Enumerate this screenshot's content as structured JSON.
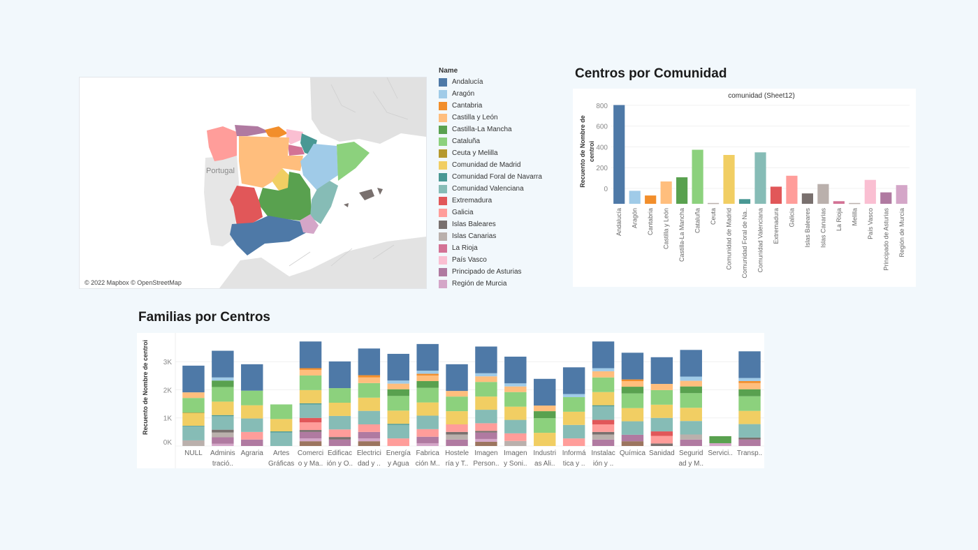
{
  "map": {
    "attribution": "© 2022 Mapbox © OpenStreetMap",
    "portugal_label": "Portugal"
  },
  "legend": {
    "title": "Name",
    "items": [
      {
        "label": "Andalucía",
        "color": "#4e79a7"
      },
      {
        "label": "Aragón",
        "color": "#a0cbe8"
      },
      {
        "label": "Cantabria",
        "color": "#f28e2b"
      },
      {
        "label": "Castilla y León",
        "color": "#ffbe7d"
      },
      {
        "label": "Castilla-La Mancha",
        "color": "#59a14f"
      },
      {
        "label": "Cataluña",
        "color": "#8cd17d"
      },
      {
        "label": "Ceuta y Melilla",
        "color": "#b6992d"
      },
      {
        "label": "Comunidad de Madrid",
        "color": "#f1ce63"
      },
      {
        "label": "Comunidad Foral de Navarra",
        "color": "#499894"
      },
      {
        "label": "Comunidad Valenciana",
        "color": "#86bcb6"
      },
      {
        "label": "Extremadura",
        "color": "#e15759"
      },
      {
        "label": "Galicia",
        "color": "#ff9d9a"
      },
      {
        "label": "Islas Baleares",
        "color": "#79706e"
      },
      {
        "label": "Islas Canarias",
        "color": "#bab0ac"
      },
      {
        "label": "La Rioja",
        "color": "#d37295"
      },
      {
        "label": "País Vasco",
        "color": "#fabfd2"
      },
      {
        "label": "Principado de Asturias",
        "color": "#b07aa1"
      },
      {
        "label": "Región de Murcia",
        "color": "#d4a6c8"
      }
    ]
  },
  "titles": {
    "centros_por_comunidad": "Centros por Comunidad",
    "familias_por_centros": "Familias por Centros"
  },
  "chart_data": [
    {
      "type": "bar",
      "title": "Centros por Comunidad",
      "subtitle": "comunidad (Sheet12)",
      "xlabel": "",
      "ylabel": "Recuento de Nombre de centro",
      "ylim": [
        0,
        960
      ],
      "yticks": [
        0,
        200,
        400,
        600,
        800
      ],
      "grid": true,
      "categories": [
        "Andalucía",
        "Aragón",
        "Cantabria",
        "Castilla y León",
        "Castilla-La Mancha",
        "Cataluña",
        "Ceuta",
        "Comunidad de Madrid",
        "Comunidad Foral de Na..",
        "Comunidad Valenciana",
        "Extremadura",
        "Galicia",
        "Islas Baleares",
        "Islas Canarias",
        "La Rioja",
        "Melilla",
        "País Vasco",
        "Principado de Asturias",
        "Región de Murcia"
      ],
      "values": [
        950,
        125,
        80,
        215,
        255,
        520,
        8,
        470,
        45,
        495,
        165,
        270,
        100,
        190,
        25,
        8,
        230,
        110,
        180
      ],
      "colors": [
        "#4e79a7",
        "#a0cbe8",
        "#f28e2b",
        "#ffbe7d",
        "#59a14f",
        "#8cd17d",
        "#bab0ac",
        "#f1ce63",
        "#499894",
        "#86bcb6",
        "#e15759",
        "#ff9d9a",
        "#79706e",
        "#bab0ac",
        "#d37295",
        "#bab0ac",
        "#fabfd2",
        "#b07aa1",
        "#d4a6c8"
      ]
    },
    {
      "type": "bar",
      "stacked": true,
      "title": "Familias por Centros",
      "xlabel": "",
      "ylabel": "Recuento de Nombre de centro",
      "ylim": [
        -100,
        3900
      ],
      "yticks": [
        0,
        1000,
        2000,
        3000
      ],
      "ytick_labels": [
        "0K",
        "1K",
        "2K",
        "3K"
      ],
      "grid": true,
      "series_order": [
        "Región de Murcia",
        "Principado de Asturias",
        "Islas Canarias",
        "Islas Baleares",
        "Galicia",
        "Extremadura",
        "Comunidad Valenciana",
        "Comunidad Foral de Navarra",
        "Comunidad de Madrid",
        "Ceuta y Melilla",
        "Cataluña",
        "Castilla-La Mancha",
        "Castilla y León",
        "Cantabria",
        "Aragón",
        "Andalucía"
      ],
      "extra_colors": {
        "Canarias/Other brown": "#9c755f"
      },
      "categories": [
        {
          "label": [
            "NULL",
            ""
          ],
          "segments": [
            [
              "#bab0ac",
              200
            ],
            [
              "#86bcb6",
              500
            ],
            [
              "#499894",
              20
            ],
            [
              "#f1ce63",
              450
            ],
            [
              "#b6992d",
              20
            ],
            [
              "#8cd17d",
              520
            ],
            [
              "#ffbe7d",
              200
            ],
            [
              "#4e79a7",
              950
            ]
          ]
        },
        {
          "label": [
            "Adminis",
            "tració.."
          ],
          "segments": [
            [
              "#d4a6c8",
              80
            ],
            [
              "#b07aa1",
              230
            ],
            [
              "#bab0ac",
              170
            ],
            [
              "#79706e",
              100
            ],
            [
              "#86bcb6",
              480
            ],
            [
              "#499894",
              40
            ],
            [
              "#f1ce63",
              480
            ],
            [
              "#8cd17d",
              520
            ],
            [
              "#59a14f",
              230
            ],
            [
              "#a0cbe8",
              110
            ],
            [
              "#4e79a7",
              950
            ]
          ]
        },
        {
          "label": [
            "Agraria",
            ""
          ],
          "segments": [
            [
              "#b07aa1",
              230
            ],
            [
              "#ff9d9a",
              270
            ],
            [
              "#86bcb6",
              480
            ],
            [
              "#f1ce63",
              470
            ],
            [
              "#8cd17d",
              520
            ],
            [
              "#4e79a7",
              940
            ]
          ]
        },
        {
          "label": [
            "Artes",
            "Gráficas"
          ],
          "segments": [
            [
              "#86bcb6",
              480
            ],
            [
              "#499894",
              40
            ],
            [
              "#f1ce63",
              440
            ],
            [
              "#8cd17d",
              520
            ]
          ]
        },
        {
          "label": [
            "Comerci",
            "o y Ma.."
          ],
          "segments": [
            [
              "#9c755f",
              170
            ],
            [
              "#d4a6c8",
              100
            ],
            [
              "#b07aa1",
              230
            ],
            [
              "#79706e",
              70
            ],
            [
              "#ff9d9a",
              270
            ],
            [
              "#e15759",
              160
            ],
            [
              "#86bcb6",
              480
            ],
            [
              "#499894",
              40
            ],
            [
              "#f1ce63",
              470
            ],
            [
              "#8cd17d",
              520
            ],
            [
              "#ffbe7d",
              200
            ],
            [
              "#f28e2b",
              60
            ],
            [
              "#4e79a7",
              950
            ]
          ]
        },
        {
          "label": [
            "Edificac",
            "ión y O.."
          ],
          "segments": [
            [
              "#b07aa1",
              230
            ],
            [
              "#79706e",
              90
            ],
            [
              "#ff9d9a",
              270
            ],
            [
              "#86bcb6",
              480
            ],
            [
              "#f1ce63",
              470
            ],
            [
              "#8cd17d",
              520
            ],
            [
              "#4e79a7",
              950
            ]
          ]
        },
        {
          "label": [
            "Electrici",
            "dad y .."
          ],
          "segments": [
            [
              "#9c755f",
              170
            ],
            [
              "#d4a6c8",
              100
            ],
            [
              "#b07aa1",
              230
            ],
            [
              "#ff9d9a",
              270
            ],
            [
              "#86bcb6",
              480
            ],
            [
              "#f1ce63",
              470
            ],
            [
              "#8cd17d",
              520
            ],
            [
              "#ffbe7d",
              200
            ],
            [
              "#f28e2b",
              80
            ],
            [
              "#4e79a7",
              950
            ]
          ]
        },
        {
          "label": [
            "Energía",
            "y Agua"
          ],
          "segments": [
            [
              "#ff9d9a",
              270
            ],
            [
              "#86bcb6",
              480
            ],
            [
              "#499894",
              40
            ],
            [
              "#f1ce63",
              470
            ],
            [
              "#8cd17d",
              520
            ],
            [
              "#59a14f",
              240
            ],
            [
              "#ffbe7d",
              200
            ],
            [
              "#a0cbe8",
              110
            ],
            [
              "#4e79a7",
              950
            ]
          ]
        },
        {
          "label": [
            "Fabrica",
            "ción M.."
          ],
          "segments": [
            [
              "#d4a6c8",
              100
            ],
            [
              "#b07aa1",
              230
            ],
            [
              "#ff9d9a",
              270
            ],
            [
              "#86bcb6",
              480
            ],
            [
              "#f1ce63",
              470
            ],
            [
              "#8cd17d",
              520
            ],
            [
              "#59a14f",
              240
            ],
            [
              "#ffbe7d",
              200
            ],
            [
              "#f28e2b",
              60
            ],
            [
              "#a0cbe8",
              110
            ],
            [
              "#4e79a7",
              950
            ]
          ]
        },
        {
          "label": [
            "Hostele",
            "ría y T.."
          ],
          "segments": [
            [
              "#b07aa1",
              230
            ],
            [
              "#bab0ac",
              180
            ],
            [
              "#79706e",
              90
            ],
            [
              "#ff9d9a",
              270
            ],
            [
              "#f1ce63",
              470
            ],
            [
              "#8cd17d",
              520
            ],
            [
              "#ffbe7d",
              200
            ],
            [
              "#4e79a7",
              950
            ]
          ]
        },
        {
          "label": [
            "Imagen",
            "Person.."
          ],
          "segments": [
            [
              "#9c755f",
              150
            ],
            [
              "#d4a6c8",
              100
            ],
            [
              "#b07aa1",
              230
            ],
            [
              "#79706e",
              60
            ],
            [
              "#ff9d9a",
              270
            ],
            [
              "#86bcb6",
              480
            ],
            [
              "#f1ce63",
              470
            ],
            [
              "#8cd17d",
              520
            ],
            [
              "#ffbe7d",
              200
            ],
            [
              "#a0cbe8",
              110
            ],
            [
              "#4e79a7",
              950
            ]
          ]
        },
        {
          "label": [
            "Imagen",
            "y Soni.."
          ],
          "segments": [
            [
              "#bab0ac",
              180
            ],
            [
              "#ff9d9a",
              270
            ],
            [
              "#86bcb6",
              480
            ],
            [
              "#f1ce63",
              470
            ],
            [
              "#8cd17d",
              520
            ],
            [
              "#ffbe7d",
              200
            ],
            [
              "#a0cbe8",
              110
            ],
            [
              "#4e79a7",
              950
            ]
          ]
        },
        {
          "label": [
            "Industri",
            "as Ali.."
          ],
          "segments": [
            [
              "#f1ce63",
              470
            ],
            [
              "#8cd17d",
              520
            ],
            [
              "#59a14f",
              250
            ],
            [
              "#ffbe7d",
              200
            ],
            [
              "#4e79a7",
              950
            ]
          ]
        },
        {
          "label": [
            "Informá",
            "tica y .."
          ],
          "segments": [
            [
              "#ff9d9a",
              270
            ],
            [
              "#86bcb6",
              480
            ],
            [
              "#f1ce63",
              470
            ],
            [
              "#8cd17d",
              520
            ],
            [
              "#a0cbe8",
              110
            ],
            [
              "#4e79a7",
              950
            ]
          ]
        },
        {
          "label": [
            "Instalac",
            "ión y .."
          ],
          "segments": [
            [
              "#b07aa1",
              230
            ],
            [
              "#bab0ac",
              180
            ],
            [
              "#79706e",
              90
            ],
            [
              "#ff9d9a",
              270
            ],
            [
              "#e15759",
              160
            ],
            [
              "#86bcb6",
              480
            ],
            [
              "#499894",
              40
            ],
            [
              "#f1ce63",
              470
            ],
            [
              "#8cd17d",
              520
            ],
            [
              "#ffbe7d",
              220
            ],
            [
              "#a0cbe8",
              110
            ],
            [
              "#4e79a7",
              950
            ]
          ]
        },
        {
          "label": [
            "Química",
            ""
          ],
          "segments": [
            [
              "#9c755f",
              170
            ],
            [
              "#b07aa1",
              230
            ],
            [
              "#86bcb6",
              480
            ],
            [
              "#f1ce63",
              470
            ],
            [
              "#8cd17d",
              520
            ],
            [
              "#59a14f",
              240
            ],
            [
              "#ffbe7d",
              200
            ],
            [
              "#f28e2b",
              60
            ],
            [
              "#4e79a7",
              950
            ]
          ]
        },
        {
          "label": [
            "Sanidad",
            ""
          ],
          "segments": [
            [
              "#79706e",
              90
            ],
            [
              "#ff9d9a",
              270
            ],
            [
              "#e15759",
              160
            ],
            [
              "#86bcb6",
              480
            ],
            [
              "#f1ce63",
              470
            ],
            [
              "#8cd17d",
              520
            ],
            [
              "#ffbe7d",
              220
            ],
            [
              "#4e79a7",
              950
            ]
          ]
        },
        {
          "label": [
            "Segurid",
            "ad y M.."
          ],
          "segments": [
            [
              "#b07aa1",
              230
            ],
            [
              "#bab0ac",
              180
            ],
            [
              "#86bcb6",
              480
            ],
            [
              "#f1ce63",
              470
            ],
            [
              "#8cd17d",
              520
            ],
            [
              "#59a14f",
              240
            ],
            [
              "#ffbe7d",
              200
            ],
            [
              "#a0cbe8",
              150
            ],
            [
              "#4e79a7",
              950
            ]
          ]
        },
        {
          "label": [
            "Servici..",
            ""
          ],
          "segments": [
            [
              "#d4a6c8",
              100
            ],
            [
              "#59a14f",
              250
            ]
          ]
        },
        {
          "label": [
            "Transp..",
            ""
          ],
          "segments": [
            [
              "#b07aa1",
              230
            ],
            [
              "#79706e",
              70
            ],
            [
              "#86bcb6",
              480
            ],
            [
              "#f1ce63",
              470
            ],
            [
              "#8cd17d",
              520
            ],
            [
              "#59a14f",
              250
            ],
            [
              "#ffbe7d",
              220
            ],
            [
              "#f28e2b",
              70
            ],
            [
              "#a0cbe8",
              110
            ],
            [
              "#4e79a7",
              950
            ]
          ]
        }
      ]
    }
  ]
}
